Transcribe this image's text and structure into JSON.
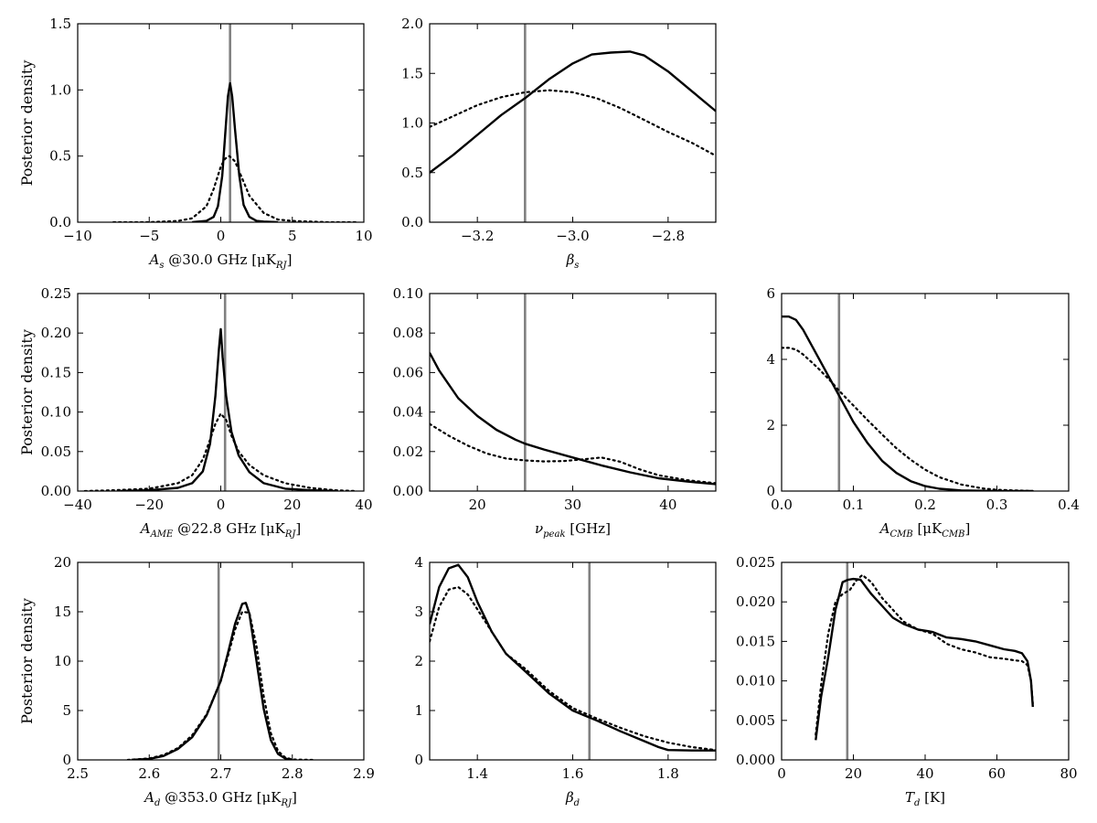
{
  "chart_data": [
    {
      "id": "As",
      "type": "line",
      "xlabel": "A_s @30.0 GHz [μK_RJ]",
      "ylabel": "Posterior density",
      "xlim": [
        -10,
        10
      ],
      "ylim": [
        0,
        1.5
      ],
      "xticks": [
        "−10",
        "−5",
        "0",
        "5",
        "10"
      ],
      "xtick_values": [
        -10,
        -5,
        0,
        5,
        10
      ],
      "yticks": [
        "0.0",
        "0.5",
        "1.0",
        "1.5"
      ],
      "ytick_values": [
        0,
        0.5,
        1.0,
        1.5
      ],
      "truth": 0.65,
      "series": [
        {
          "style": "solid",
          "x": [
            -2.0,
            -1.0,
            -0.5,
            -0.2,
            0.1,
            0.3,
            0.5,
            0.65,
            0.8,
            1.0,
            1.3,
            1.6,
            2.0,
            2.5,
            3.0,
            4.0
          ],
          "y": [
            0.0,
            0.01,
            0.04,
            0.12,
            0.35,
            0.65,
            0.95,
            1.05,
            0.95,
            0.7,
            0.35,
            0.13,
            0.04,
            0.01,
            0.005,
            0.0
          ]
        },
        {
          "style": "dotted",
          "x": [
            -7.5,
            -5,
            -3,
            -2,
            -1,
            -0.5,
            0,
            0.3,
            0.6,
            1.0,
            1.5,
            2.0,
            3.0,
            4.0,
            5.0,
            7.5,
            9.5
          ],
          "y": [
            0.0,
            0.0,
            0.01,
            0.03,
            0.12,
            0.25,
            0.42,
            0.48,
            0.5,
            0.46,
            0.33,
            0.2,
            0.07,
            0.02,
            0.01,
            0.0,
            0.0
          ]
        }
      ]
    },
    {
      "id": "beta_s",
      "type": "line",
      "xlabel": "β_s",
      "ylabel": "",
      "xlim": [
        -3.3,
        -2.7
      ],
      "ylim": [
        0,
        2.0
      ],
      "xticks": [
        "−3.2",
        "−3.0",
        "−2.8"
      ],
      "xtick_values": [
        -3.2,
        -3.0,
        -2.8
      ],
      "yticks": [
        "0.0",
        "0.5",
        "1.0",
        "1.5",
        "2.0"
      ],
      "ytick_values": [
        0,
        0.5,
        1.0,
        1.5,
        2.0
      ],
      "truth": -3.1,
      "series": [
        {
          "style": "solid",
          "x": [
            -3.3,
            -3.25,
            -3.2,
            -3.15,
            -3.1,
            -3.05,
            -3.0,
            -2.96,
            -2.92,
            -2.88,
            -2.85,
            -2.8,
            -2.75,
            -2.7
          ],
          "y": [
            0.5,
            0.68,
            0.88,
            1.08,
            1.25,
            1.44,
            1.6,
            1.69,
            1.71,
            1.72,
            1.68,
            1.52,
            1.32,
            1.12
          ]
        },
        {
          "style": "dotted",
          "x": [
            -3.3,
            -3.25,
            -3.2,
            -3.15,
            -3.1,
            -3.05,
            -3.0,
            -2.95,
            -2.9,
            -2.85,
            -2.8,
            -2.75,
            -2.7
          ],
          "y": [
            0.96,
            1.07,
            1.18,
            1.26,
            1.31,
            1.33,
            1.31,
            1.25,
            1.15,
            1.03,
            0.91,
            0.8,
            0.67
          ]
        }
      ]
    },
    {
      "id": "A_AME",
      "type": "line",
      "xlabel": "A_AME @22.8 GHz [μK_RJ]",
      "ylabel": "Posterior density",
      "xlim": [
        -40,
        40
      ],
      "ylim": [
        0,
        0.25
      ],
      "xticks": [
        "−40",
        "−20",
        "0",
        "20",
        "40"
      ],
      "xtick_values": [
        -40,
        -20,
        0,
        20,
        40
      ],
      "yticks": [
        "0.00",
        "0.05",
        "0.10",
        "0.15",
        "0.20",
        "0.25"
      ],
      "ytick_values": [
        0,
        0.05,
        0.1,
        0.15,
        0.2,
        0.25
      ],
      "truth": 1.2,
      "series": [
        {
          "style": "solid",
          "x": [
            -28,
            -20,
            -12,
            -8,
            -5,
            -3,
            -1.5,
            -0.5,
            0,
            0.5,
            1.5,
            3,
            5,
            8,
            12,
            18,
            25,
            32
          ],
          "y": [
            0.0,
            0.001,
            0.004,
            0.01,
            0.025,
            0.06,
            0.12,
            0.18,
            0.205,
            0.17,
            0.12,
            0.075,
            0.045,
            0.024,
            0.01,
            0.003,
            0.001,
            0.0
          ]
        },
        {
          "style": "dotted",
          "x": [
            -38,
            -30,
            -20,
            -12,
            -8,
            -5,
            -3,
            -1.5,
            0,
            1.5,
            3,
            5,
            8,
            12,
            18,
            25,
            32,
            38
          ],
          "y": [
            0.0,
            0.001,
            0.003,
            0.01,
            0.02,
            0.04,
            0.065,
            0.085,
            0.098,
            0.09,
            0.07,
            0.05,
            0.033,
            0.02,
            0.01,
            0.004,
            0.001,
            0.0
          ]
        }
      ]
    },
    {
      "id": "nu_peak",
      "type": "line",
      "xlabel": "ν_peak [GHz]",
      "ylabel": "",
      "xlim": [
        15,
        45
      ],
      "ylim": [
        0,
        0.1
      ],
      "xticks": [
        "20",
        "30",
        "40"
      ],
      "xtick_values": [
        20,
        30,
        40
      ],
      "yticks": [
        "0.00",
        "0.02",
        "0.04",
        "0.06",
        "0.08",
        "0.10"
      ],
      "ytick_values": [
        0,
        0.02,
        0.04,
        0.06,
        0.08,
        0.1
      ],
      "truth": 25,
      "series": [
        {
          "style": "solid",
          "x": [
            15,
            16,
            17,
            18,
            20,
            22,
            24,
            25,
            27,
            30,
            33,
            36,
            39,
            42,
            45
          ],
          "y": [
            0.07,
            0.061,
            0.054,
            0.047,
            0.038,
            0.031,
            0.026,
            0.024,
            0.021,
            0.017,
            0.013,
            0.0095,
            0.0065,
            0.0048,
            0.0035
          ]
        },
        {
          "style": "dotted",
          "x": [
            15,
            17,
            19,
            21,
            23,
            25,
            27,
            29,
            31,
            33,
            35,
            37,
            39,
            42,
            45
          ],
          "y": [
            0.034,
            0.028,
            0.023,
            0.019,
            0.0165,
            0.0155,
            0.015,
            0.0152,
            0.016,
            0.017,
            0.0148,
            0.011,
            0.008,
            0.0055,
            0.004
          ]
        }
      ]
    },
    {
      "id": "A_CMB",
      "type": "line",
      "xlabel": "A_CMB [μK_CMB]",
      "ylabel": "",
      "xlim": [
        0.0,
        0.4
      ],
      "ylim": [
        0,
        6
      ],
      "xticks": [
        "0.0",
        "0.1",
        "0.2",
        "0.3",
        "0.4"
      ],
      "xtick_values": [
        0,
        0.1,
        0.2,
        0.3,
        0.4
      ],
      "yticks": [
        "0",
        "2",
        "4",
        "6"
      ],
      "ytick_values": [
        0,
        2,
        4,
        6
      ],
      "truth": 0.08,
      "series": [
        {
          "style": "solid",
          "x": [
            0.0,
            0.01,
            0.02,
            0.03,
            0.05,
            0.07,
            0.08,
            0.1,
            0.12,
            0.14,
            0.16,
            0.18,
            0.2,
            0.22,
            0.25,
            0.3,
            0.35
          ],
          "y": [
            5.3,
            5.3,
            5.2,
            4.9,
            4.1,
            3.3,
            2.9,
            2.1,
            1.45,
            0.92,
            0.55,
            0.3,
            0.15,
            0.07,
            0.02,
            0.0,
            0.0
          ]
        },
        {
          "style": "dotted",
          "x": [
            0.0,
            0.01,
            0.02,
            0.03,
            0.05,
            0.07,
            0.08,
            0.1,
            0.12,
            0.14,
            0.16,
            0.18,
            0.2,
            0.22,
            0.25,
            0.28,
            0.3,
            0.35
          ],
          "y": [
            4.35,
            4.35,
            4.3,
            4.15,
            3.75,
            3.3,
            3.05,
            2.6,
            2.15,
            1.72,
            1.3,
            0.95,
            0.65,
            0.42,
            0.2,
            0.08,
            0.04,
            0.0
          ]
        }
      ]
    },
    {
      "id": "A_d",
      "type": "line",
      "xlabel": "A_d @353.0 GHz [μK_RJ]",
      "ylabel": "Posterior density",
      "xlim": [
        2.5,
        2.9
      ],
      "ylim": [
        0,
        20
      ],
      "xticks": [
        "2.5",
        "2.6",
        "2.7",
        "2.8",
        "2.9"
      ],
      "xtick_values": [
        2.5,
        2.6,
        2.7,
        2.8,
        2.9
      ],
      "yticks": [
        "0",
        "5",
        "10",
        "15",
        "20"
      ],
      "ytick_values": [
        0,
        5,
        10,
        15,
        20
      ],
      "truth": 2.697,
      "series": [
        {
          "style": "solid",
          "x": [
            2.575,
            2.6,
            2.62,
            2.64,
            2.66,
            2.68,
            2.7,
            2.71,
            2.72,
            2.73,
            2.735,
            2.74,
            2.75,
            2.76,
            2.77,
            2.78,
            2.79,
            2.8
          ],
          "y": [
            0.0,
            0.1,
            0.4,
            1.1,
            2.3,
            4.5,
            8.0,
            10.8,
            13.8,
            15.8,
            15.9,
            14.8,
            10.0,
            5.2,
            2.0,
            0.6,
            0.15,
            0.0
          ]
        },
        {
          "style": "dotted",
          "x": [
            2.57,
            2.6,
            2.62,
            2.64,
            2.66,
            2.68,
            2.7,
            2.71,
            2.72,
            2.73,
            2.74,
            2.75,
            2.76,
            2.77,
            2.78,
            2.79,
            2.8,
            2.83
          ],
          "y": [
            0.0,
            0.15,
            0.5,
            1.2,
            2.5,
            4.6,
            8.0,
            10.5,
            13.2,
            15.0,
            14.9,
            11.5,
            6.5,
            2.7,
            0.9,
            0.25,
            0.05,
            0.0
          ]
        }
      ]
    },
    {
      "id": "beta_d",
      "type": "line",
      "xlabel": "β_d",
      "ylabel": "",
      "xlim": [
        1.3,
        1.9
      ],
      "ylim": [
        0,
        4
      ],
      "xticks": [
        "1.4",
        "1.6",
        "1.8"
      ],
      "xtick_values": [
        1.4,
        1.6,
        1.8
      ],
      "yticks": [
        "0",
        "1",
        "2",
        "3",
        "4"
      ],
      "ytick_values": [
        0,
        1,
        2,
        3,
        4
      ],
      "truth": 1.635,
      "series": [
        {
          "style": "solid",
          "x": [
            1.3,
            1.32,
            1.34,
            1.36,
            1.38,
            1.4,
            1.43,
            1.46,
            1.5,
            1.55,
            1.6,
            1.65,
            1.7,
            1.75,
            1.78,
            1.8,
            1.85,
            1.9
          ],
          "y": [
            2.75,
            3.5,
            3.88,
            3.95,
            3.7,
            3.2,
            2.6,
            2.15,
            1.8,
            1.35,
            1.0,
            0.8,
            0.58,
            0.38,
            0.26,
            0.2,
            0.19,
            0.19
          ]
        },
        {
          "style": "dotted",
          "x": [
            1.3,
            1.32,
            1.34,
            1.36,
            1.38,
            1.4,
            1.43,
            1.46,
            1.5,
            1.55,
            1.6,
            1.65,
            1.7,
            1.75,
            1.8,
            1.85,
            1.9
          ],
          "y": [
            2.4,
            3.1,
            3.45,
            3.5,
            3.35,
            3.05,
            2.6,
            2.15,
            1.85,
            1.4,
            1.05,
            0.84,
            0.65,
            0.48,
            0.35,
            0.26,
            0.2
          ]
        }
      ]
    },
    {
      "id": "T_d",
      "type": "line",
      "xlabel": "T_d [K]",
      "ylabel": "",
      "xlim": [
        0,
        80
      ],
      "ylim": [
        0,
        0.025
      ],
      "xticks": [
        "0",
        "20",
        "40",
        "60",
        "80"
      ],
      "xtick_values": [
        0,
        20,
        40,
        60,
        80
      ],
      "yticks": [
        "0.000",
        "0.005",
        "0.010",
        "0.015",
        "0.020",
        "0.025"
      ],
      "ytick_values": [
        0,
        0.005,
        0.01,
        0.015,
        0.02,
        0.025
      ],
      "truth": 18.3,
      "series": [
        {
          "style": "solid",
          "x": [
            9.5,
            11,
            13,
            15,
            17,
            18.5,
            20,
            22,
            25,
            28,
            31,
            34,
            38,
            42,
            46,
            50,
            54,
            58,
            62,
            65,
            67,
            68.5,
            69.5,
            70
          ],
          "y": [
            0.0025,
            0.008,
            0.013,
            0.019,
            0.0225,
            0.0228,
            0.0229,
            0.0228,
            0.021,
            0.0195,
            0.018,
            0.0172,
            0.0165,
            0.0162,
            0.0155,
            0.0153,
            0.015,
            0.0145,
            0.014,
            0.0138,
            0.0135,
            0.0125,
            0.01,
            0.0067
          ]
        },
        {
          "style": "dotted",
          "x": [
            9.5,
            11,
            13,
            15,
            17,
            19,
            21,
            22.5,
            25,
            28,
            31,
            34,
            38,
            42,
            46,
            50,
            54,
            58,
            62,
            65,
            67,
            68.5,
            69.5,
            70
          ],
          "y": [
            0.0032,
            0.0095,
            0.016,
            0.02,
            0.021,
            0.0215,
            0.0228,
            0.0234,
            0.0225,
            0.0205,
            0.019,
            0.0175,
            0.0165,
            0.016,
            0.0147,
            0.014,
            0.0136,
            0.013,
            0.0128,
            0.0126,
            0.0125,
            0.012,
            0.01,
            0.007
          ]
        }
      ]
    }
  ]
}
